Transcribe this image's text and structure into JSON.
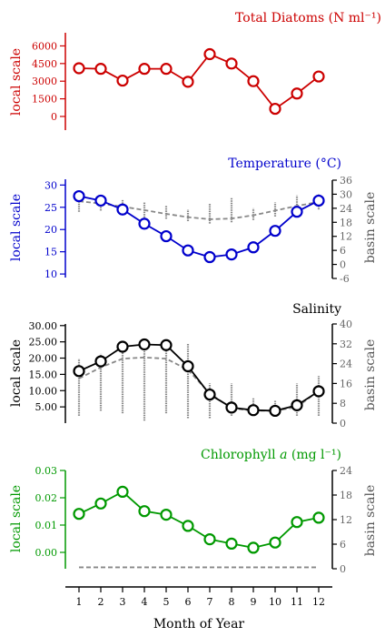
{
  "chart_data": [
    {
      "type": "line",
      "title": "Total Diatoms (N ml⁻¹)",
      "color": "#cc0000",
      "ylabel": "local scale",
      "ylim": [
        -700,
        6500
      ],
      "yticks": [
        0,
        1500,
        3000,
        4500,
        6000
      ],
      "ytick_labels": [
        "0",
        "1500",
        "3000",
        "4500",
        "6000"
      ],
      "x": [
        1,
        2,
        3,
        4,
        5,
        6,
        7,
        8,
        9,
        10,
        11,
        12
      ],
      "local_values": [
        4100,
        4050,
        3050,
        4050,
        4050,
        2950,
        5300,
        4500,
        3000,
        650,
        1950,
        3400
      ]
    },
    {
      "type": "line",
      "title": "Temperature (°C)",
      "color": "#0000cc",
      "ylabel": "local scale",
      "ylabel_right": "basin scale",
      "ylim": [
        9,
        31.5
      ],
      "yticks": [
        10,
        15,
        20,
        25,
        30
      ],
      "ytick_labels": [
        "10",
        "15",
        "20",
        "25",
        "30"
      ],
      "y2lim": [
        -6,
        36
      ],
      "y2ticks": [
        -6,
        0,
        6,
        12,
        18,
        24,
        30,
        36
      ],
      "y2tick_labels": [
        "-6",
        "0",
        "6",
        "12",
        "18",
        "24",
        "30",
        "36"
      ],
      "x": [
        1,
        2,
        3,
        4,
        5,
        6,
        7,
        8,
        9,
        10,
        11,
        12
      ],
      "local_values": [
        27.5,
        26.5,
        24.5,
        21.3,
        18.5,
        15.3,
        13.8,
        14.4,
        16.0,
        19.7,
        24.0,
        26.5
      ],
      "basin_mean": [
        27.0,
        26.0,
        24.7,
        23.2,
        21.6,
        20.2,
        19.3,
        19.6,
        21.0,
        23.0,
        25.0,
        26.7
      ],
      "basin_ranges": [
        [
          22.5,
          29.5
        ],
        [
          23.0,
          28.0
        ],
        [
          23.0,
          27.5
        ],
        [
          20.0,
          26.5
        ],
        [
          19.5,
          25.0
        ],
        [
          18.5,
          23.5
        ],
        [
          17.5,
          26.0
        ],
        [
          18.0,
          28.5
        ],
        [
          19.0,
          24.0
        ],
        [
          20.5,
          26.5
        ],
        [
          22.5,
          29.5
        ],
        [
          23.5,
          30.0
        ]
      ]
    },
    {
      "type": "line",
      "title": "Salinity",
      "color": "#000000",
      "ylabel": "local scale",
      "ylabel_right": "basin scale",
      "ylim": [
        0,
        30.5
      ],
      "yticks": [
        5,
        10,
        15,
        20,
        25,
        30
      ],
      "ytick_labels": [
        "5.00",
        "10.00",
        "15.00",
        "20.00",
        "25.00",
        "30.00"
      ],
      "y2lim": [
        0,
        40
      ],
      "y2ticks": [
        0,
        8,
        16,
        24,
        32,
        40
      ],
      "y2tick_labels": [
        "0",
        "8",
        "16",
        "24",
        "32",
        "40"
      ],
      "x": [
        1,
        2,
        3,
        4,
        5,
        6,
        7,
        8,
        9,
        10,
        11,
        12
      ],
      "local_values": [
        16.0,
        19.0,
        23.5,
        24.2,
        24.0,
        17.5,
        8.8,
        4.8,
        4.0,
        3.8,
        5.5,
        9.8
      ],
      "basin_mean": [
        18,
        22.5,
        26,
        26.5,
        26,
        21.5,
        12,
        6,
        5,
        5,
        6.5,
        13
      ],
      "basin_ranges": [
        [
          3,
          26
        ],
        [
          5,
          28
        ],
        [
          4,
          31
        ],
        [
          1,
          30
        ],
        [
          4,
          30
        ],
        [
          2,
          32
        ],
        [
          2,
          16
        ],
        [
          3,
          16
        ],
        [
          4,
          10
        ],
        [
          3,
          9
        ],
        [
          3,
          16
        ],
        [
          3,
          19
        ]
      ]
    },
    {
      "type": "line",
      "title": "Chlorophyll a (mg l⁻¹)",
      "title_main": "Chlorophyll ",
      "title_italic": "a",
      "title_unit": " (mg l⁻¹)",
      "color": "#009900",
      "ylabel": "local scale",
      "ylabel_right": "basin scale",
      "ylim": [
        -0.006,
        0.03
      ],
      "yticks": [
        0,
        0.01,
        0.02,
        0.03
      ],
      "ytick_labels": [
        "0.00",
        "0.01",
        "0.02",
        "0.03"
      ],
      "y2lim": [
        0,
        24
      ],
      "y2ticks": [
        0,
        6,
        12,
        18,
        24
      ],
      "y2tick_labels": [
        "0",
        "6",
        "12",
        "18",
        "24"
      ],
      "x": [
        1,
        2,
        3,
        4,
        5,
        6,
        7,
        8,
        9,
        10,
        11,
        12
      ],
      "local_values": [
        0.0141,
        0.0179,
        0.0222,
        0.0151,
        0.0138,
        0.0097,
        0.0048,
        0.0032,
        0.0017,
        0.0036,
        0.0111,
        0.0127
      ],
      "basin_mean": [
        0.35,
        0.35,
        0.35,
        0.35,
        0.35,
        0.35,
        0.35,
        0.35,
        0.35,
        0.35,
        0.35,
        0.35
      ]
    }
  ],
  "xaxis": {
    "label": "Month of Year",
    "ticks": [
      "1",
      "2",
      "3",
      "4",
      "5",
      "6",
      "7",
      "8",
      "9",
      "10",
      "11",
      "12"
    ]
  },
  "colors": {
    "basin": "#888888",
    "axis": "#000000"
  }
}
